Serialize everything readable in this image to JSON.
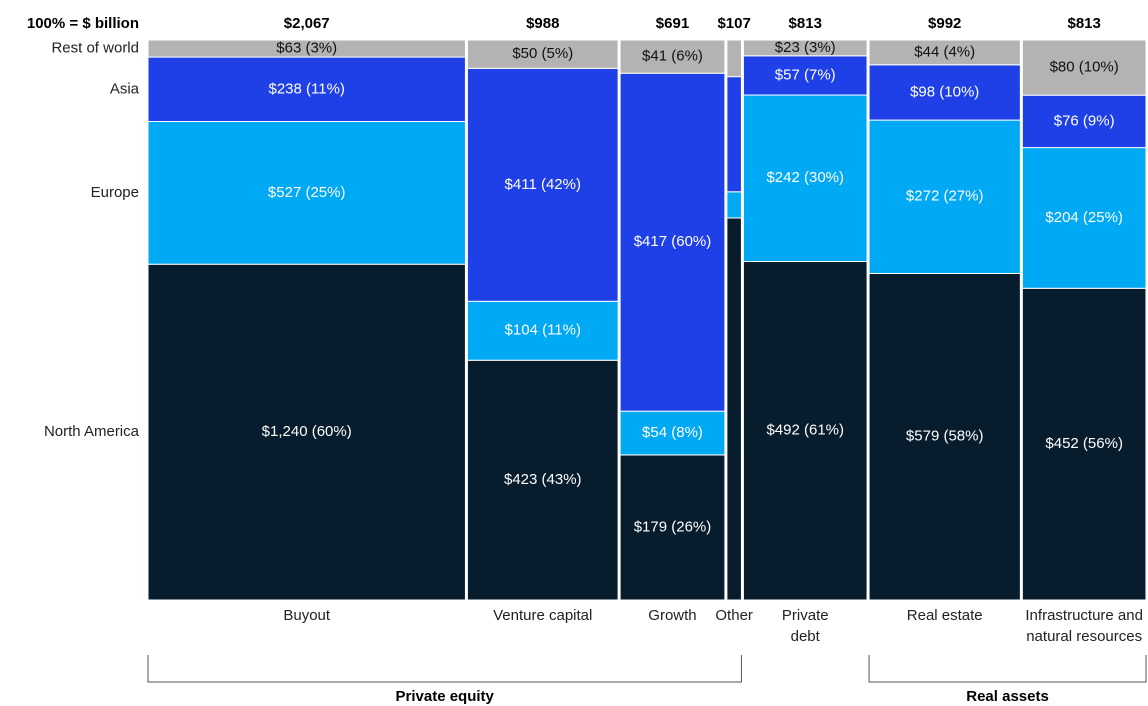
{
  "chart_data": {
    "type": "marimekko",
    "header_label": "100% = $ billion",
    "categories": [
      "Buyout",
      "Venture capital",
      "Growth",
      "Other",
      "Private debt",
      "Real estate",
      "Infrastructure and natural resources"
    ],
    "totals": [
      2067,
      988,
      691,
      107,
      813,
      992,
      813
    ],
    "total_labels": [
      "$2,067",
      "$988",
      "$691",
      "$107",
      "$813",
      "$992",
      "$813"
    ],
    "series": [
      {
        "name": "North America",
        "color": "#071c2c",
        "values": [
          1240,
          423,
          179,
          73,
          492,
          579,
          452
        ],
        "value_labels": [
          "$1,240 (60%)",
          "$423 (43%)",
          "$179 (26%)",
          null,
          "$492 (61%)",
          "$579 (58%)",
          "$452 (56%)"
        ]
      },
      {
        "name": "Europe",
        "color": "#00a9f4",
        "values": [
          527,
          104,
          54,
          5,
          242,
          272,
          204
        ],
        "value_labels": [
          "$527 (25%)",
          "$104 (11%)",
          "$54 (8%)",
          null,
          "$242 (30%)",
          "$272 (27%)",
          "$204 (25%)"
        ]
      },
      {
        "name": "Asia",
        "color": "#1f40e6",
        "values": [
          238,
          411,
          417,
          22,
          57,
          98,
          76
        ],
        "value_labels": [
          "$238 (11%)",
          "$411 (42%)",
          "$417 (60%)",
          null,
          "$57 (7%)",
          "$98 (10%)",
          "$76 (9%)"
        ]
      },
      {
        "name": "Rest of world",
        "color": "#b3b3b3",
        "values": [
          63,
          50,
          41,
          7,
          23,
          44,
          80
        ],
        "value_labels": [
          "$63 (3%)",
          "$50 (5%)",
          "$41 (6%)",
          null,
          "$23 (3%)",
          "$44 (4%)",
          "$80 (10%)"
        ]
      }
    ],
    "groups": [
      {
        "name": "Private equity",
        "categories": [
          "Buyout",
          "Venture capital",
          "Growth",
          "Other"
        ]
      },
      {
        "name": "Real assets",
        "categories": [
          "Real estate",
          "Infrastructure and natural resources"
        ]
      }
    ]
  }
}
